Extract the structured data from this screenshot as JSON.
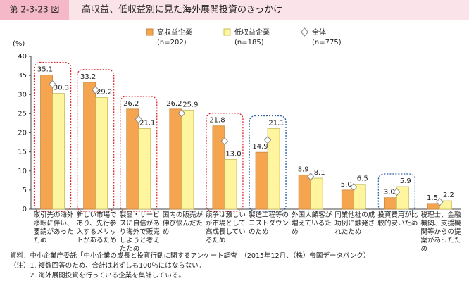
{
  "chart_data": {
    "type": "bar",
    "figure_label": "第 2-3-23 図",
    "title": "高収益、低収益別に見た海外展開投資のきっかけ",
    "y_label": "(%)",
    "ylim": [
      0,
      40
    ],
    "yticks": [
      0,
      5,
      10,
      15,
      20,
      25,
      30,
      35,
      40
    ],
    "grid": false,
    "categories": [
      "取引先の海外移転に伴い、要請があったため",
      "新しい市場であり、先行参入するメリットがあるため",
      "製品・サービスに自信があり海外で販売しようと考えたため",
      "国内の販売が伸び悩んだため",
      "競争は激しいが市場として高成長しているため",
      "製造工程等のコストダウンのため",
      "外国人顧客が増えているため",
      "同業他社の成功例に触発されたため",
      "投資費用が比較的安いため",
      "税理士、金融機関、支援機関等からの提案があったため"
    ],
    "series": [
      {
        "name": "高収益企業",
        "sample": "(n=202)",
        "color": "#f5a550",
        "stroke": "#c9873c",
        "marker": "bar",
        "values": [
          35.1,
          33.2,
          26.2,
          26.2,
          21.8,
          14.9,
          8.9,
          5.0,
          3.0,
          1.5
        ],
        "value_labels": [
          "35.1",
          "33.2",
          "26.2",
          "26.2",
          "21.8",
          "14.9",
          "8.9",
          "5.0",
          "3.0",
          "1.5"
        ]
      },
      {
        "name": "低収益企業",
        "sample": "(n=185)",
        "color": "#fff59e",
        "stroke": "#c8bc5a",
        "marker": "bar",
        "values": [
          30.3,
          29.2,
          21.1,
          25.9,
          13.0,
          21.1,
          8.1,
          6.5,
          5.9,
          2.2
        ],
        "value_labels": [
          "30.3",
          "29.2",
          "21.1",
          "25.9",
          "13.0",
          "21.1",
          "8.1",
          "6.5",
          "5.9",
          "2.2"
        ]
      },
      {
        "name": "全体",
        "sample": "(n=775)",
        "color": "#ffffff",
        "stroke": "#8a8a8a",
        "marker": "diamond",
        "values": [
          32.7,
          31.2,
          23.5,
          25.1,
          17.8,
          18.1,
          8.5,
          5.8,
          4.5,
          1.9
        ]
      }
    ],
    "highlights": [
      {
        "color": "#d9262c",
        "categories": [
          0,
          1,
          2,
          4
        ]
      },
      {
        "color": "#2a5d9f",
        "categories": [
          5,
          8
        ]
      }
    ]
  },
  "notes": [
    "資料：中小企業庁委託「中小企業の成長と投資行動に関するアンケート調査」（2015年12月、（株）帝国データバンク）",
    "（注）1. 複数回答のため、合計は必ずしも100％にはならない。",
    "　　　2. 海外展開投資を行っている企業を集計している。"
  ]
}
